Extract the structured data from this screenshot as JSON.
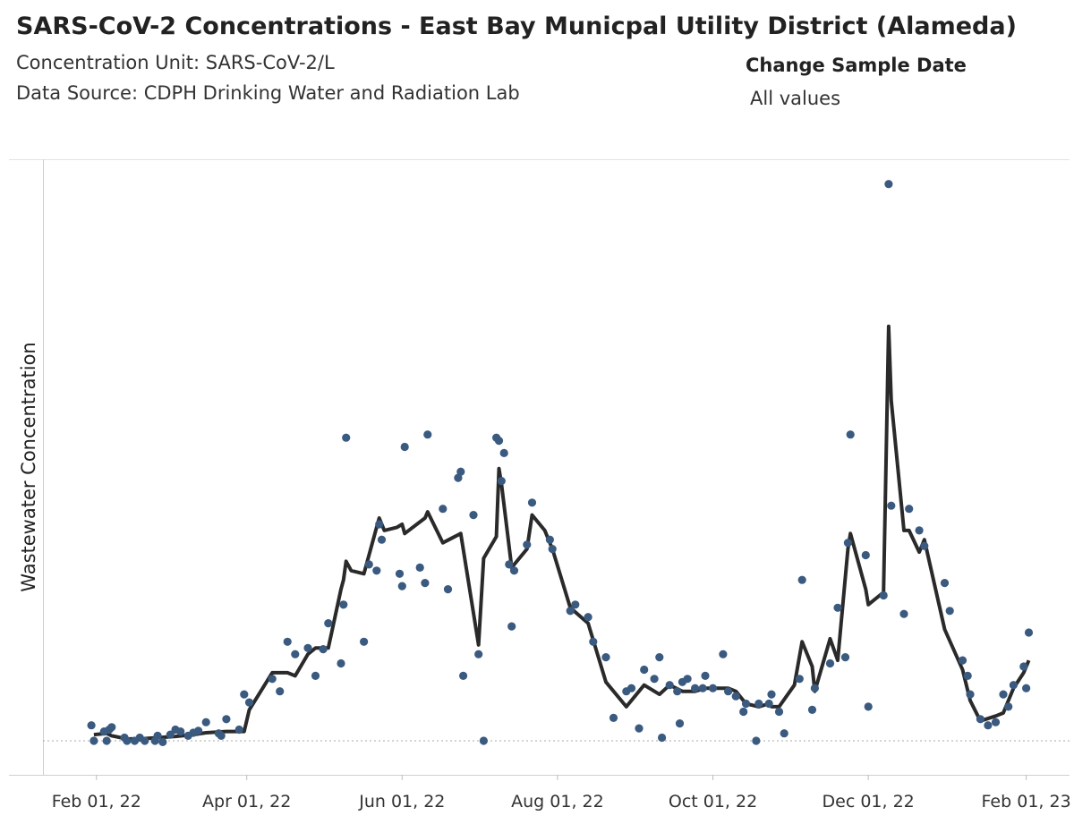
{
  "header": {
    "title": "SARS-CoV-2 Concentrations - East Bay Municpal Utility District (Alameda)",
    "unit_line": "Concentration Unit:  SARS-CoV-2/L",
    "source_line": "Data Source: CDPH Drinking Water and Radiation Lab"
  },
  "filter": {
    "label": "Change Sample Date",
    "value": "All values"
  },
  "chart_data": {
    "type": "scatter",
    "title": "",
    "xlabel": "",
    "ylabel": "Wastewater Concentration",
    "x_tick_labels": [
      "Feb 01, 22",
      "Apr 01, 22",
      "Jun 01, 22",
      "Aug 01, 22",
      "Oct 01, 22",
      "Dec 01, 22",
      "Feb 01, 23"
    ],
    "x_ticks": [
      "2022-02-01",
      "2022-04-01",
      "2022-06-01",
      "2022-08-01",
      "2022-10-01",
      "2022-12-01",
      "2023-02-01"
    ],
    "xlim": [
      "2022-01-11",
      "2023-02-18"
    ],
    "ylim": [
      -0.055,
      0.94
    ],
    "y_axis_labels_shown": false,
    "reference_line_y": 0,
    "colors": {
      "points": "#3b5a80",
      "line": "#2a2a2a",
      "reference": "#aaaaaa"
    },
    "series": [
      {
        "type": "scatter",
        "points": [
          [
            "2022-01-30",
            0.025
          ],
          [
            "2022-01-31",
            0.0
          ],
          [
            "2022-02-04",
            0.015
          ],
          [
            "2022-02-05",
            0.0
          ],
          [
            "2022-02-06",
            0.018
          ],
          [
            "2022-02-07",
            0.022
          ],
          [
            "2022-02-12",
            0.005
          ],
          [
            "2022-02-13",
            0.0
          ],
          [
            "2022-02-16",
            0.0
          ],
          [
            "2022-02-18",
            0.005
          ],
          [
            "2022-02-20",
            0.0
          ],
          [
            "2022-02-24",
            0.0
          ],
          [
            "2022-02-25",
            0.008
          ],
          [
            "2022-02-27",
            -0.002
          ],
          [
            "2022-03-02",
            0.01
          ],
          [
            "2022-03-04",
            0.018
          ],
          [
            "2022-03-06",
            0.015
          ],
          [
            "2022-03-09",
            0.008
          ],
          [
            "2022-03-11",
            0.013
          ],
          [
            "2022-03-13",
            0.016
          ],
          [
            "2022-03-16",
            0.03
          ],
          [
            "2022-03-21",
            0.012
          ],
          [
            "2022-03-22",
            0.008
          ],
          [
            "2022-03-24",
            0.035
          ],
          [
            "2022-03-29",
            0.018
          ],
          [
            "2022-03-31",
            0.075
          ],
          [
            "2022-04-02",
            0.062
          ],
          [
            "2022-04-11",
            0.1
          ],
          [
            "2022-04-14",
            0.08
          ],
          [
            "2022-04-17",
            0.16
          ],
          [
            "2022-04-20",
            0.14
          ],
          [
            "2022-04-25",
            0.15
          ],
          [
            "2022-04-28",
            0.105
          ],
          [
            "2022-05-01",
            0.148
          ],
          [
            "2022-05-03",
            0.19
          ],
          [
            "2022-05-08",
            0.125
          ],
          [
            "2022-05-09",
            0.22
          ],
          [
            "2022-05-10",
            0.49
          ],
          [
            "2022-05-17",
            0.16
          ],
          [
            "2022-05-19",
            0.285
          ],
          [
            "2022-05-22",
            0.275
          ],
          [
            "2022-05-23",
            0.35
          ],
          [
            "2022-05-24",
            0.325
          ],
          [
            "2022-05-31",
            0.27
          ],
          [
            "2022-06-01",
            0.25
          ],
          [
            "2022-06-02",
            0.475
          ],
          [
            "2022-06-08",
            0.28
          ],
          [
            "2022-06-10",
            0.255
          ],
          [
            "2022-06-11",
            0.495
          ],
          [
            "2022-06-17",
            0.375
          ],
          [
            "2022-06-19",
            0.245
          ],
          [
            "2022-06-23",
            0.425
          ],
          [
            "2022-06-24",
            0.435
          ],
          [
            "2022-06-25",
            0.105
          ],
          [
            "2022-06-29",
            0.365
          ],
          [
            "2022-07-01",
            0.14
          ],
          [
            "2022-07-03",
            0.0
          ],
          [
            "2022-07-08",
            0.49
          ],
          [
            "2022-07-09",
            0.485
          ],
          [
            "2022-07-10",
            0.42
          ],
          [
            "2022-07-11",
            0.465
          ],
          [
            "2022-07-13",
            0.285
          ],
          [
            "2022-07-14",
            0.185
          ],
          [
            "2022-07-15",
            0.275
          ],
          [
            "2022-07-20",
            0.317
          ],
          [
            "2022-07-22",
            0.385
          ],
          [
            "2022-07-29",
            0.325
          ],
          [
            "2022-07-30",
            0.31
          ],
          [
            "2022-08-06",
            0.21
          ],
          [
            "2022-08-08",
            0.22
          ],
          [
            "2022-08-13",
            0.2
          ],
          [
            "2022-08-15",
            0.16
          ],
          [
            "2022-08-20",
            0.135
          ],
          [
            "2022-08-23",
            0.037
          ],
          [
            "2022-08-28",
            0.08
          ],
          [
            "2022-08-30",
            0.085
          ],
          [
            "2022-09-02",
            0.02
          ],
          [
            "2022-09-04",
            0.115
          ],
          [
            "2022-09-08",
            0.1
          ],
          [
            "2022-09-10",
            0.135
          ],
          [
            "2022-09-11",
            0.005
          ],
          [
            "2022-09-14",
            0.09
          ],
          [
            "2022-09-17",
            0.08
          ],
          [
            "2022-09-18",
            0.028
          ],
          [
            "2022-09-19",
            0.095
          ],
          [
            "2022-09-21",
            0.1
          ],
          [
            "2022-09-24",
            0.085
          ],
          [
            "2022-09-27",
            0.085
          ],
          [
            "2022-09-28",
            0.105
          ],
          [
            "2022-10-01",
            0.085
          ],
          [
            "2022-10-05",
            0.14
          ],
          [
            "2022-10-07",
            0.08
          ],
          [
            "2022-10-10",
            0.072
          ],
          [
            "2022-10-13",
            0.047
          ],
          [
            "2022-10-14",
            0.06
          ],
          [
            "2022-10-18",
            0.0
          ],
          [
            "2022-10-19",
            0.06
          ],
          [
            "2022-10-23",
            0.06
          ],
          [
            "2022-10-24",
            0.075
          ],
          [
            "2022-10-27",
            0.047
          ],
          [
            "2022-10-29",
            0.012
          ],
          [
            "2022-11-04",
            0.1
          ],
          [
            "2022-11-05",
            0.26
          ],
          [
            "2022-11-09",
            0.05
          ],
          [
            "2022-11-10",
            0.085
          ],
          [
            "2022-11-16",
            0.125
          ],
          [
            "2022-11-19",
            0.215
          ],
          [
            "2022-11-22",
            0.135
          ],
          [
            "2022-11-23",
            0.32
          ],
          [
            "2022-11-24",
            0.495
          ],
          [
            "2022-11-30",
            0.3
          ],
          [
            "2022-12-01",
            0.055
          ],
          [
            "2022-12-07",
            0.235
          ],
          [
            "2022-12-09",
            0.9
          ],
          [
            "2022-12-10",
            0.38
          ],
          [
            "2022-12-15",
            0.205
          ],
          [
            "2022-12-17",
            0.375
          ],
          [
            "2022-12-21",
            0.34
          ],
          [
            "2022-12-23",
            0.315
          ],
          [
            "2022-12-31",
            0.255
          ],
          [
            "2023-01-02",
            0.21
          ],
          [
            "2023-01-07",
            0.13
          ],
          [
            "2023-01-09",
            0.105
          ],
          [
            "2023-01-10",
            0.075
          ],
          [
            "2023-01-14",
            0.035
          ],
          [
            "2023-01-17",
            0.025
          ],
          [
            "2023-01-20",
            0.03
          ],
          [
            "2023-01-23",
            0.075
          ],
          [
            "2023-01-25",
            0.055
          ],
          [
            "2023-01-27",
            0.09
          ],
          [
            "2023-01-31",
            0.12
          ],
          [
            "2023-02-01",
            0.085
          ],
          [
            "2023-02-02",
            0.175
          ]
        ]
      },
      {
        "type": "line",
        "points": [
          [
            "2022-01-31",
            0.01
          ],
          [
            "2022-02-05",
            0.012
          ],
          [
            "2022-02-07",
            0.008
          ],
          [
            "2022-02-13",
            0.003
          ],
          [
            "2022-02-18",
            0.003
          ],
          [
            "2022-02-25",
            0.005
          ],
          [
            "2022-03-04",
            0.007
          ],
          [
            "2022-03-11",
            0.01
          ],
          [
            "2022-03-16",
            0.013
          ],
          [
            "2022-03-24",
            0.015
          ],
          [
            "2022-03-31",
            0.015
          ],
          [
            "2022-04-02",
            0.05
          ],
          [
            "2022-04-11",
            0.11
          ],
          [
            "2022-04-17",
            0.11
          ],
          [
            "2022-04-20",
            0.105
          ],
          [
            "2022-04-25",
            0.14
          ],
          [
            "2022-04-28",
            0.15
          ],
          [
            "2022-05-03",
            0.15
          ],
          [
            "2022-05-08",
            0.245
          ],
          [
            "2022-05-09",
            0.26
          ],
          [
            "2022-05-10",
            0.29
          ],
          [
            "2022-05-12",
            0.275
          ],
          [
            "2022-05-17",
            0.27
          ],
          [
            "2022-05-22",
            0.345
          ],
          [
            "2022-05-23",
            0.36
          ],
          [
            "2022-05-25",
            0.34
          ],
          [
            "2022-05-30",
            0.345
          ],
          [
            "2022-06-01",
            0.35
          ],
          [
            "2022-06-02",
            0.335
          ],
          [
            "2022-06-10",
            0.36
          ],
          [
            "2022-06-11",
            0.37
          ],
          [
            "2022-06-17",
            0.32
          ],
          [
            "2022-06-24",
            0.335
          ],
          [
            "2022-07-01",
            0.155
          ],
          [
            "2022-07-03",
            0.295
          ],
          [
            "2022-07-08",
            0.33
          ],
          [
            "2022-07-09",
            0.44
          ],
          [
            "2022-07-10",
            0.415
          ],
          [
            "2022-07-14",
            0.28
          ],
          [
            "2022-07-20",
            0.31
          ],
          [
            "2022-07-22",
            0.365
          ],
          [
            "2022-07-27",
            0.34
          ],
          [
            "2022-07-30",
            0.31
          ],
          [
            "2022-08-06",
            0.215
          ],
          [
            "2022-08-13",
            0.19
          ],
          [
            "2022-08-20",
            0.095
          ],
          [
            "2022-08-28",
            0.055
          ],
          [
            "2022-09-04",
            0.09
          ],
          [
            "2022-09-10",
            0.075
          ],
          [
            "2022-09-14",
            0.09
          ],
          [
            "2022-09-19",
            0.08
          ],
          [
            "2022-09-24",
            0.08
          ],
          [
            "2022-09-28",
            0.085
          ],
          [
            "2022-10-01",
            0.085
          ],
          [
            "2022-10-07",
            0.085
          ],
          [
            "2022-10-10",
            0.08
          ],
          [
            "2022-10-14",
            0.06
          ],
          [
            "2022-10-19",
            0.055
          ],
          [
            "2022-10-23",
            0.06
          ],
          [
            "2022-10-24",
            0.055
          ],
          [
            "2022-10-27",
            0.055
          ],
          [
            "2022-11-02",
            0.09
          ],
          [
            "2022-11-05",
            0.16
          ],
          [
            "2022-11-09",
            0.12
          ],
          [
            "2022-11-10",
            0.08
          ],
          [
            "2022-11-16",
            0.165
          ],
          [
            "2022-11-19",
            0.13
          ],
          [
            "2022-11-23",
            0.31
          ],
          [
            "2022-11-24",
            0.335
          ],
          [
            "2022-11-30",
            0.245
          ],
          [
            "2022-12-01",
            0.22
          ],
          [
            "2022-12-07",
            0.24
          ],
          [
            "2022-12-09",
            0.67
          ],
          [
            "2022-12-10",
            0.55
          ],
          [
            "2022-12-15",
            0.34
          ],
          [
            "2022-12-17",
            0.34
          ],
          [
            "2022-12-21",
            0.305
          ],
          [
            "2022-12-23",
            0.325
          ],
          [
            "2022-12-31",
            0.18
          ],
          [
            "2023-01-07",
            0.115
          ],
          [
            "2023-01-10",
            0.065
          ],
          [
            "2023-01-14",
            0.032
          ],
          [
            "2023-01-20",
            0.04
          ],
          [
            "2023-01-23",
            0.045
          ],
          [
            "2023-01-27",
            0.085
          ],
          [
            "2023-01-31",
            0.11
          ],
          [
            "2023-02-02",
            0.13
          ]
        ]
      }
    ]
  }
}
